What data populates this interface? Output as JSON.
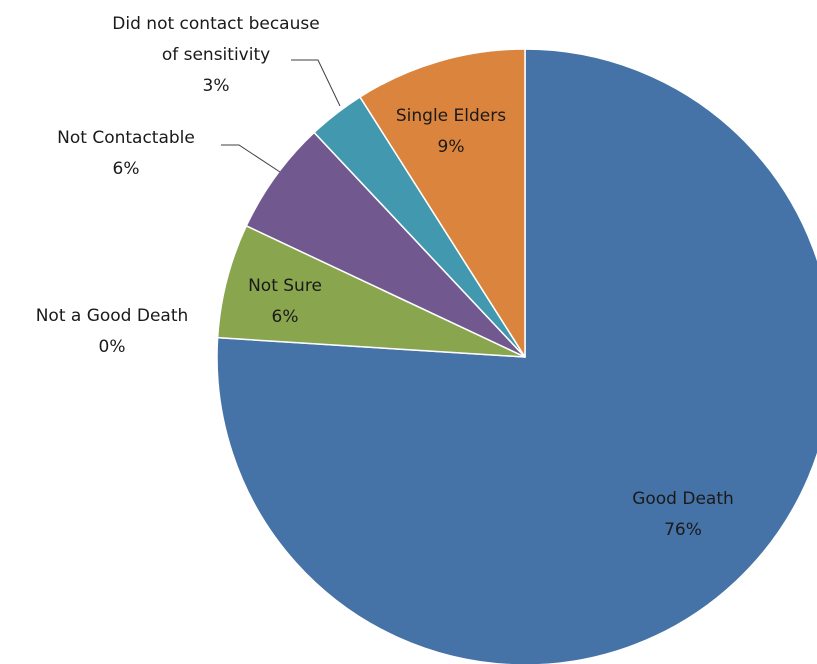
{
  "chart_data": {
    "type": "pie",
    "title": "",
    "start_angle_deg": 0,
    "direction": "clockwise",
    "legend": "none",
    "slices": [
      {
        "name": "Good Death",
        "value": 76,
        "label": "76%",
        "color": "#4572a7"
      },
      {
        "name": "Not a Good Death",
        "value": 0,
        "label": "0%",
        "color": "#aa4643"
      },
      {
        "name": "Not Sure",
        "value": 6,
        "label": "6%",
        "color": "#89a54e"
      },
      {
        "name": "Not Contactable",
        "value": 6,
        "label": "6%",
        "color": "#71588f"
      },
      {
        "name": "Did not contact because of sensitivity",
        "value": 3,
        "label": "3%",
        "color": "#4198af"
      },
      {
        "name": "Single Elders",
        "value": 9,
        "label": "9%",
        "color": "#db843d"
      }
    ]
  }
}
